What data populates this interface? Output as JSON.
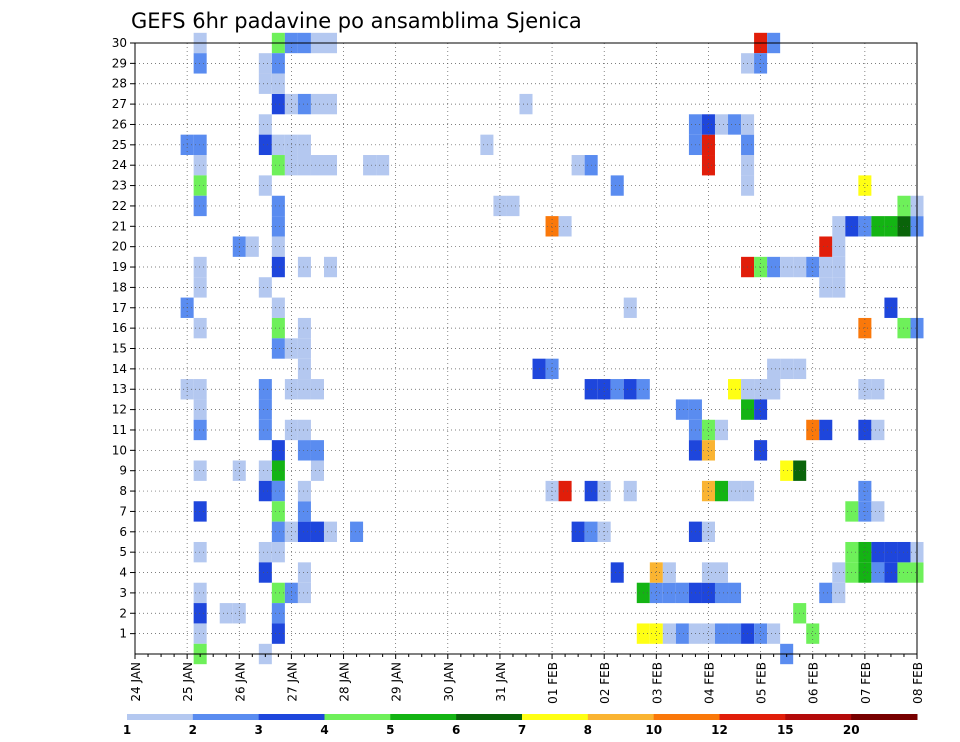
{
  "chart_data": {
    "type": "heatmap",
    "title": "GEFS 6hr padavine po ansamblima Sjenica",
    "xlabel": "",
    "ylabel": "",
    "x_tick_labels": [
      "24 JAN",
      "25 JAN",
      "26 JAN",
      "27 JAN",
      "28 JAN",
      "29 JAN",
      "30 JAN",
      "31 JAN",
      "01 FEB",
      "02 FEB",
      "03 FEB",
      "04 FEB",
      "05 FEB",
      "06 FEB",
      "07 FEB",
      "08 FEB"
    ],
    "x_range": [
      0,
      60
    ],
    "x_step_hours": 6,
    "y_tick_labels": [
      "1",
      "2",
      "3",
      "4",
      "5",
      "6",
      "7",
      "8",
      "9",
      "10",
      "11",
      "12",
      "13",
      "14",
      "15",
      "16",
      "17",
      "18",
      "19",
      "20",
      "21",
      "22",
      "23",
      "24",
      "25",
      "26",
      "27",
      "28",
      "29",
      "30"
    ],
    "y_range": [
      0,
      30
    ],
    "grid": true,
    "legend": {
      "placement": "bottom",
      "boundaries": [
        "1",
        "2",
        "3",
        "4",
        "5",
        "6",
        "7",
        "8",
        "10",
        "12",
        "15",
        "20"
      ],
      "colors": [
        "#b4c8f0",
        "#5a8cf0",
        "#1e46dc",
        "#6ef05a",
        "#14b414",
        "#0a640a",
        "#ffff14",
        "#fab432",
        "#fa780a",
        "#e11e0a",
        "#b40a0a",
        "#780000"
      ]
    },
    "cells": [
      [
        5,
        30,
        1
      ],
      [
        5,
        29,
        2
      ],
      [
        5,
        25,
        2
      ],
      [
        5,
        24,
        1
      ],
      [
        5,
        23,
        4
      ],
      [
        5,
        22,
        2
      ],
      [
        5,
        19,
        1
      ],
      [
        5,
        18,
        1
      ],
      [
        5,
        16,
        1
      ],
      [
        5,
        13,
        1
      ],
      [
        5,
        12,
        1
      ],
      [
        5,
        11,
        2
      ],
      [
        5,
        9,
        1
      ],
      [
        5,
        7,
        3
      ],
      [
        5,
        5,
        1
      ],
      [
        5,
        3,
        1
      ],
      [
        5,
        2,
        3
      ],
      [
        5,
        1,
        1
      ],
      [
        5,
        0,
        4
      ],
      [
        4,
        25,
        2
      ],
      [
        4,
        17,
        2
      ],
      [
        4,
        13,
        1
      ],
      [
        8,
        20,
        2
      ],
      [
        8,
        9,
        1
      ],
      [
        7,
        2,
        1
      ],
      [
        8,
        2,
        1
      ],
      [
        9,
        20,
        1
      ],
      [
        11,
        30,
        4
      ],
      [
        11,
        29,
        2
      ],
      [
        11,
        27,
        3
      ],
      [
        11,
        24,
        4
      ],
      [
        11,
        22,
        2
      ],
      [
        11,
        21,
        2
      ],
      [
        11,
        20,
        1
      ],
      [
        11,
        19,
        3
      ],
      [
        11,
        17,
        1
      ],
      [
        11,
        16,
        4
      ],
      [
        11,
        15,
        2
      ],
      [
        11,
        10,
        3
      ],
      [
        11,
        9,
        5
      ],
      [
        11,
        8,
        2
      ],
      [
        11,
        7,
        4
      ],
      [
        11,
        6,
        2
      ],
      [
        11,
        5,
        1
      ],
      [
        11,
        3,
        4
      ],
      [
        11,
        2,
        2
      ],
      [
        11,
        1,
        3
      ],
      [
        10,
        29,
        1
      ],
      [
        10,
        28,
        1
      ],
      [
        10,
        26,
        1
      ],
      [
        10,
        25,
        3
      ],
      [
        10,
        23,
        1
      ],
      [
        10,
        18,
        1
      ],
      [
        10,
        13,
        2
      ],
      [
        10,
        12,
        2
      ],
      [
        10,
        11,
        2
      ],
      [
        10,
        9,
        1
      ],
      [
        10,
        8,
        3
      ],
      [
        10,
        5,
        1
      ],
      [
        10,
        4,
        3
      ],
      [
        10,
        0,
        1
      ],
      [
        11,
        28,
        1
      ],
      [
        11,
        25,
        1
      ],
      [
        12,
        30,
        2
      ],
      [
        13,
        30,
        2
      ],
      [
        14,
        30,
        1
      ],
      [
        15,
        30,
        1
      ],
      [
        12,
        27,
        1
      ],
      [
        13,
        27,
        2
      ],
      [
        14,
        27,
        1
      ],
      [
        12,
        24,
        1
      ],
      [
        13,
        24,
        1
      ],
      [
        14,
        24,
        1
      ],
      [
        15,
        24,
        1
      ],
      [
        12,
        6,
        1
      ],
      [
        13,
        6,
        3
      ],
      [
        14,
        6,
        3
      ],
      [
        15,
        6,
        1
      ],
      [
        12,
        3,
        2
      ],
      [
        13,
        3,
        1
      ],
      [
        13,
        7,
        2
      ],
      [
        13,
        8,
        1
      ],
      [
        12,
        13,
        1
      ],
      [
        13,
        13,
        1
      ],
      [
        14,
        13,
        1
      ],
      [
        12,
        11,
        1
      ],
      [
        13,
        11,
        1
      ],
      [
        13,
        10,
        2
      ],
      [
        14,
        10,
        2
      ],
      [
        13,
        16,
        1
      ],
      [
        13,
        15,
        1
      ],
      [
        12,
        15,
        1
      ],
      [
        13,
        14,
        1
      ],
      [
        13,
        4,
        1
      ],
      [
        13,
        19,
        1
      ],
      [
        14,
        9,
        1
      ],
      [
        15,
        19,
        1
      ],
      [
        15,
        27,
        1
      ],
      [
        17,
        6,
        2
      ],
      [
        18,
        24,
        1
      ],
      [
        19,
        24,
        1
      ],
      [
        13,
        25,
        1
      ],
      [
        12,
        25,
        1
      ],
      [
        27,
        25,
        1
      ],
      [
        28,
        22,
        1
      ],
      [
        29,
        22,
        1
      ],
      [
        30,
        27,
        1
      ],
      [
        31,
        14,
        3
      ],
      [
        32,
        14,
        2
      ],
      [
        32,
        21,
        9
      ],
      [
        33,
        21,
        1
      ],
      [
        32,
        8,
        1
      ],
      [
        33,
        8,
        10
      ],
      [
        34,
        24,
        1
      ],
      [
        35,
        24,
        2
      ],
      [
        34,
        6,
        3
      ],
      [
        35,
        6,
        2
      ],
      [
        36,
        6,
        1
      ],
      [
        35,
        13,
        3
      ],
      [
        36,
        13,
        3
      ],
      [
        37,
        13,
        2
      ],
      [
        38,
        13,
        3
      ],
      [
        39,
        13,
        2
      ],
      [
        35,
        8,
        3
      ],
      [
        36,
        8,
        1
      ],
      [
        38,
        8,
        1
      ],
      [
        37,
        4,
        3
      ],
      [
        38,
        17,
        1
      ],
      [
        37,
        23,
        2
      ],
      [
        39,
        1,
        7
      ],
      [
        40,
        1,
        7
      ],
      [
        41,
        1,
        1
      ],
      [
        42,
        1,
        2
      ],
      [
        43,
        1,
        1
      ],
      [
        44,
        1,
        1
      ],
      [
        45,
        1,
        2
      ],
      [
        46,
        1,
        2
      ],
      [
        47,
        1,
        3
      ],
      [
        48,
        1,
        2
      ],
      [
        49,
        1,
        1
      ],
      [
        50,
        0,
        2
      ],
      [
        39,
        3,
        5
      ],
      [
        40,
        3,
        2
      ],
      [
        41,
        3,
        2
      ],
      [
        42,
        3,
        2
      ],
      [
        43,
        3,
        3
      ],
      [
        44,
        3,
        3
      ],
      [
        45,
        3,
        2
      ],
      [
        46,
        3,
        2
      ],
      [
        40,
        4,
        8
      ],
      [
        41,
        4,
        1
      ],
      [
        44,
        4,
        1
      ],
      [
        45,
        4,
        1
      ],
      [
        43,
        11,
        2
      ],
      [
        44,
        11,
        4
      ],
      [
        45,
        11,
        1
      ],
      [
        43,
        10,
        3
      ],
      [
        44,
        10,
        8
      ],
      [
        42,
        12,
        2
      ],
      [
        43,
        12,
        2
      ],
      [
        44,
        8,
        8
      ],
      [
        45,
        8,
        5
      ],
      [
        46,
        8,
        1
      ],
      [
        47,
        8,
        1
      ],
      [
        43,
        6,
        3
      ],
      [
        44,
        6,
        1
      ],
      [
        46,
        13,
        7
      ],
      [
        47,
        13,
        1
      ],
      [
        48,
        13,
        1
      ],
      [
        49,
        13,
        1
      ],
      [
        47,
        12,
        5
      ],
      [
        48,
        12,
        3
      ],
      [
        48,
        10,
        3
      ],
      [
        43,
        25,
        2
      ],
      [
        44,
        25,
        10
      ],
      [
        47,
        25,
        2
      ],
      [
        43,
        26,
        2
      ],
      [
        44,
        26,
        3
      ],
      [
        45,
        26,
        1
      ],
      [
        46,
        26,
        2
      ],
      [
        47,
        26,
        1
      ],
      [
        44,
        24,
        10
      ],
      [
        47,
        24,
        1
      ],
      [
        47,
        23,
        1
      ],
      [
        47,
        29,
        1
      ],
      [
        48,
        30,
        10
      ],
      [
        48,
        29,
        2
      ],
      [
        49,
        30,
        2
      ],
      [
        47,
        19,
        10
      ],
      [
        48,
        19,
        4
      ],
      [
        49,
        19,
        2
      ],
      [
        50,
        19,
        1
      ],
      [
        51,
        19,
        1
      ],
      [
        52,
        19,
        2
      ],
      [
        53,
        19,
        1
      ],
      [
        54,
        19,
        1
      ],
      [
        53,
        20,
        10
      ],
      [
        53,
        18,
        1
      ],
      [
        54,
        18,
        1
      ],
      [
        54,
        20,
        1
      ],
      [
        54,
        21,
        1
      ],
      [
        55,
        21,
        3
      ],
      [
        56,
        21,
        2
      ],
      [
        57,
        21,
        5
      ],
      [
        58,
        21,
        5
      ],
      [
        59,
        21,
        6
      ],
      [
        60,
        21,
        2
      ],
      [
        59,
        22,
        4
      ],
      [
        60,
        22,
        1
      ],
      [
        56,
        23,
        7
      ],
      [
        49,
        14,
        1
      ],
      [
        50,
        14,
        1
      ],
      [
        51,
        14,
        1
      ],
      [
        49,
        13,
        1
      ],
      [
        50,
        9,
        7
      ],
      [
        51,
        9,
        6
      ],
      [
        52,
        11,
        9
      ],
      [
        53,
        11,
        3
      ],
      [
        56,
        11,
        3
      ],
      [
        57,
        11,
        1
      ],
      [
        52,
        1,
        4
      ],
      [
        51,
        2,
        4
      ],
      [
        53,
        3,
        2
      ],
      [
        54,
        3,
        1
      ],
      [
        54,
        4,
        1
      ],
      [
        55,
        4,
        4
      ],
      [
        56,
        4,
        5
      ],
      [
        57,
        4,
        2
      ],
      [
        58,
        4,
        3
      ],
      [
        59,
        4,
        4
      ],
      [
        60,
        4,
        4
      ],
      [
        55,
        5,
        4
      ],
      [
        56,
        5,
        5
      ],
      [
        57,
        5,
        3
      ],
      [
        58,
        5,
        3
      ],
      [
        59,
        5,
        3
      ],
      [
        60,
        5,
        1
      ],
      [
        55,
        7,
        4
      ],
      [
        56,
        7,
        2
      ],
      [
        57,
        7,
        1
      ],
      [
        56,
        8,
        2
      ],
      [
        56,
        13,
        1
      ],
      [
        57,
        13,
        1
      ],
      [
        56,
        16,
        9
      ],
      [
        58,
        17,
        3
      ],
      [
        59,
        16,
        4
      ],
      [
        60,
        16,
        2
      ]
    ]
  }
}
